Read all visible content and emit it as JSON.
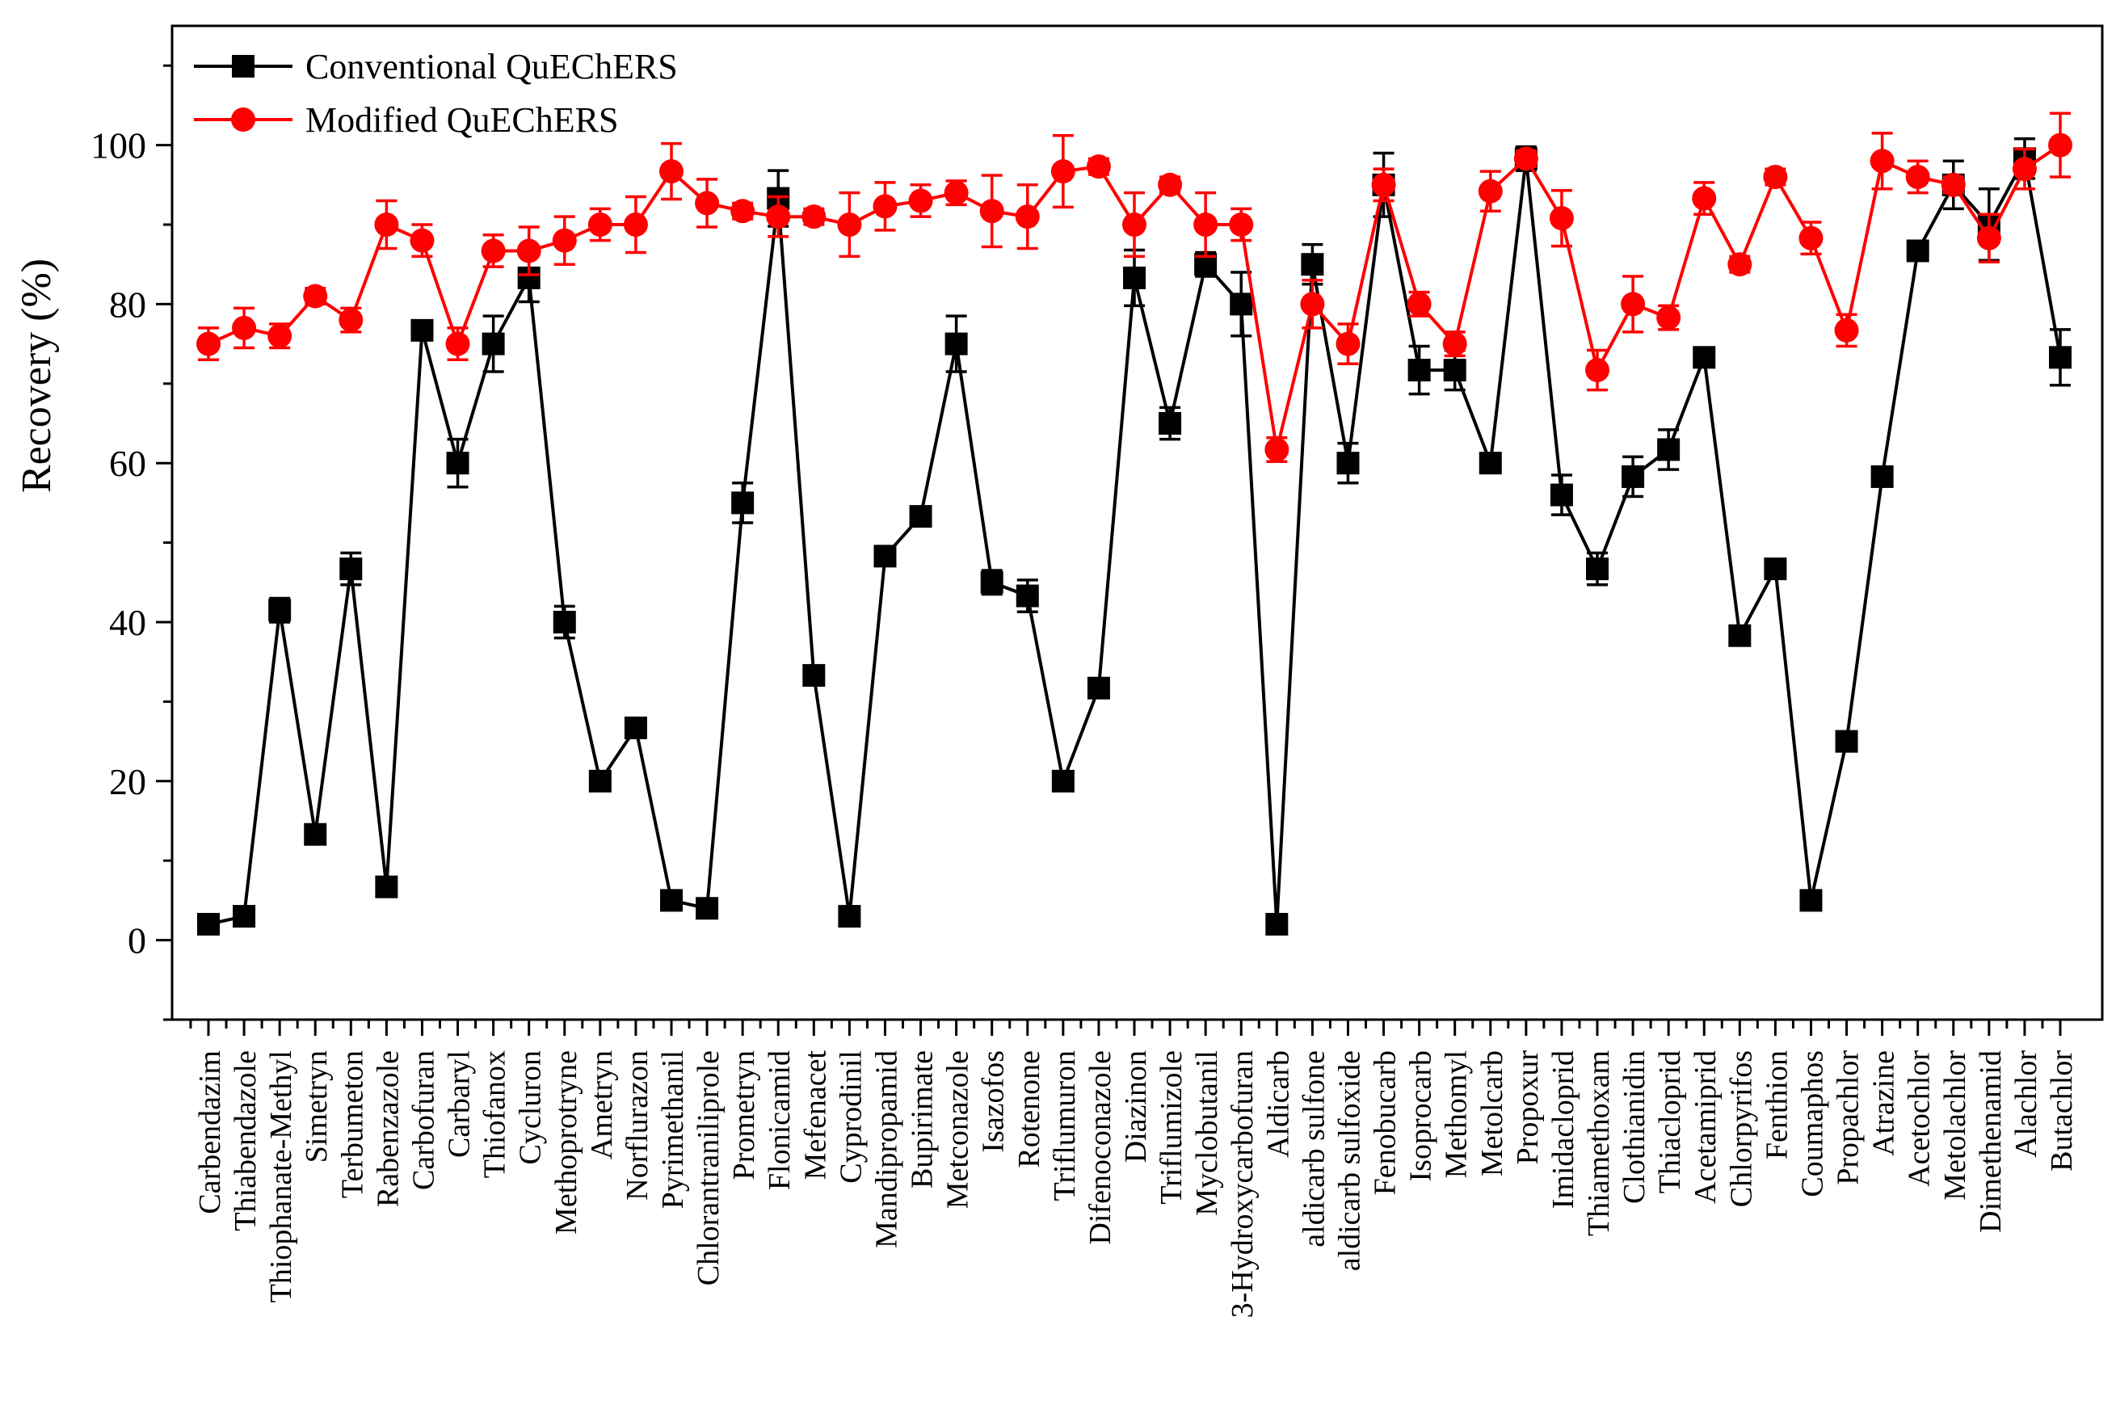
{
  "chart_data": {
    "type": "line",
    "title": "",
    "xlabel": "",
    "ylabel": "Recovery (%)",
    "ylim": [
      -10,
      115
    ],
    "yticks": [
      0,
      20,
      40,
      60,
      80,
      100
    ],
    "grid": false,
    "legend_position": "top-left",
    "categories": [
      "Carbendazim",
      "Thiabendazole",
      "Thiophanate-Methyl",
      "Simetryn",
      "Terbumeton",
      "Rabenzazole",
      "Carbofuran",
      "Carbaryl",
      "Thiofanox",
      "Cycluron",
      "Methoprotryne",
      "Ametryn",
      "Norflurazon",
      "Pyrimethanil",
      "Chlorantraniliprole",
      "Prometryn",
      "Flonicamid",
      "Mefenacet",
      "Cyprodinil",
      "Mandipropamid",
      "Bupirimate",
      "Metconazole",
      "Isazofos",
      "Rotenone",
      "Triflumuron",
      "Difenoconazole",
      "Diazinon",
      "Triflumizole",
      "Myclobutanil",
      "3-Hydroxycarbofuran",
      "Aldicarb",
      "aldicarb sulfone",
      "aldicarb sulfoxide",
      "Fenobucarb",
      "Isoprocarb",
      "Methomyl",
      "Metolcarb",
      "Propoxur",
      "Imidacloprid",
      "Thiamethoxam",
      "Clothianidin",
      "Thiacloprid",
      "Acetamiprid",
      "Chlorpyrifos",
      "Fenthion",
      "Coumaphos",
      "Propachlor",
      "Atrazine",
      "Acetochlor",
      "Metolachlor",
      "Dimethenamid",
      "Alachlor",
      "Butachlor"
    ],
    "series": [
      {
        "name": "Conventional QuEChERS",
        "color": "#000000",
        "marker": "square",
        "values": [
          2,
          3,
          41.5,
          13.3,
          46.7,
          6.7,
          76.7,
          60,
          75,
          83.3,
          40,
          20,
          26.7,
          5,
          4,
          55,
          93.3,
          33.3,
          3,
          48.3,
          53.3,
          75,
          45,
          43.3,
          20,
          31.7,
          83.3,
          65,
          85,
          80,
          2,
          85,
          60,
          95,
          71.7,
          71.7,
          60,
          98.3,
          56,
          46.7,
          58.3,
          61.7,
          73.3,
          38.3,
          46.7,
          5,
          25,
          58.3,
          86.7,
          95,
          90,
          98.3,
          73.3
        ],
        "errors": [
          0.8,
          0.8,
          1.5,
          1.2,
          2,
          1,
          1,
          3,
          3.5,
          3,
          2,
          1,
          1,
          1,
          1,
          2.5,
          3.5,
          1,
          1,
          1,
          1,
          3.5,
          1.5,
          2,
          1,
          1,
          3.5,
          2,
          1.5,
          4,
          1,
          2.5,
          2.5,
          4,
          3,
          2.5,
          1,
          1.5,
          2.5,
          2,
          2.5,
          2.5,
          1,
          1,
          1,
          1,
          1,
          1,
          1.2,
          3,
          4.5,
          2.5,
          3.5
        ]
      },
      {
        "name": "Modified QuEChERS",
        "color": "#ff0000",
        "marker": "circle",
        "values": [
          75,
          77,
          76,
          81,
          78,
          90,
          88,
          75,
          86.7,
          86.7,
          88,
          90,
          90,
          96.7,
          92.7,
          91.7,
          91,
          91,
          90,
          92.3,
          93,
          94,
          91.7,
          91,
          96.7,
          97.3,
          90,
          95,
          90,
          90,
          61.7,
          80,
          75,
          95,
          80,
          75,
          94.2,
          98.3,
          90.8,
          71.7,
          80,
          78.3,
          93.3,
          85,
          96,
          88.3,
          76.7,
          98,
          96,
          95,
          88.3,
          97,
          100
        ],
        "errors": [
          2,
          2.5,
          1.5,
          1,
          1.5,
          3,
          2,
          2,
          2,
          3,
          3,
          2,
          3.5,
          3.5,
          3,
          1,
          2.5,
          1,
          4,
          3,
          2,
          1.5,
          4.5,
          4,
          4.5,
          1,
          4,
          1,
          4,
          2,
          1.5,
          3,
          2.5,
          2,
          1.5,
          1.5,
          2.5,
          1,
          3.5,
          2.5,
          3.5,
          1.5,
          2,
          1,
          1,
          2,
          2,
          3.5,
          2,
          1,
          3,
          2.5,
          4
        ]
      }
    ]
  }
}
